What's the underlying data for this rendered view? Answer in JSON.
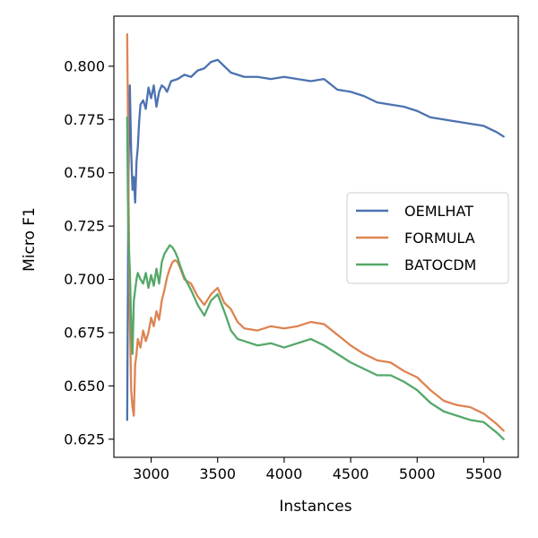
{
  "chart_data": {
    "type": "line",
    "xlabel": "Instances",
    "ylabel": "Micro F1",
    "xlim": [
      2720,
      5760
    ],
    "ylim": [
      0.6165,
      0.8235
    ],
    "x_ticks": [
      3000,
      3500,
      4000,
      4500,
      5000,
      5500
    ],
    "y_ticks": [
      0.625,
      0.65,
      0.675,
      0.7,
      0.725,
      0.75,
      0.775,
      0.8
    ],
    "y_tick_labels": [
      "0.625",
      "0.650",
      "0.675",
      "0.700",
      "0.725",
      "0.750",
      "0.775",
      "0.800"
    ],
    "legend_position": "center-right",
    "grid": false,
    "series": [
      {
        "name": "OEMLHAT",
        "color": "#4c72b0",
        "points": [
          [
            2820,
            0.634
          ],
          [
            2825,
            0.69
          ],
          [
            2830,
            0.75
          ],
          [
            2840,
            0.791
          ],
          [
            2850,
            0.76
          ],
          [
            2860,
            0.742
          ],
          [
            2870,
            0.748
          ],
          [
            2880,
            0.736
          ],
          [
            2890,
            0.755
          ],
          [
            2900,
            0.762
          ],
          [
            2910,
            0.774
          ],
          [
            2920,
            0.782
          ],
          [
            2940,
            0.784
          ],
          [
            2960,
            0.78
          ],
          [
            2980,
            0.79
          ],
          [
            3000,
            0.785
          ],
          [
            3020,
            0.791
          ],
          [
            3040,
            0.781
          ],
          [
            3060,
            0.788
          ],
          [
            3080,
            0.791
          ],
          [
            3100,
            0.79
          ],
          [
            3120,
            0.788
          ],
          [
            3150,
            0.793
          ],
          [
            3200,
            0.794
          ],
          [
            3250,
            0.796
          ],
          [
            3300,
            0.795
          ],
          [
            3350,
            0.798
          ],
          [
            3400,
            0.799
          ],
          [
            3450,
            0.802
          ],
          [
            3500,
            0.803
          ],
          [
            3550,
            0.8
          ],
          [
            3600,
            0.797
          ],
          [
            3700,
            0.795
          ],
          [
            3800,
            0.795
          ],
          [
            3900,
            0.794
          ],
          [
            4000,
            0.795
          ],
          [
            4100,
            0.794
          ],
          [
            4200,
            0.793
          ],
          [
            4300,
            0.794
          ],
          [
            4400,
            0.789
          ],
          [
            4500,
            0.788
          ],
          [
            4600,
            0.786
          ],
          [
            4700,
            0.783
          ],
          [
            4800,
            0.782
          ],
          [
            4900,
            0.781
          ],
          [
            5000,
            0.779
          ],
          [
            5100,
            0.776
          ],
          [
            5200,
            0.775
          ],
          [
            5300,
            0.774
          ],
          [
            5400,
            0.773
          ],
          [
            5500,
            0.772
          ],
          [
            5600,
            0.769
          ],
          [
            5650,
            0.767
          ]
        ]
      },
      {
        "name": "FORMULA",
        "color": "#dd8452",
        "points": [
          [
            2820,
            0.815
          ],
          [
            2825,
            0.78
          ],
          [
            2830,
            0.74
          ],
          [
            2840,
            0.682
          ],
          [
            2850,
            0.648
          ],
          [
            2860,
            0.64
          ],
          [
            2870,
            0.636
          ],
          [
            2880,
            0.66
          ],
          [
            2890,
            0.665
          ],
          [
            2900,
            0.672
          ],
          [
            2920,
            0.668
          ],
          [
            2940,
            0.676
          ],
          [
            2960,
            0.671
          ],
          [
            2980,
            0.675
          ],
          [
            3000,
            0.682
          ],
          [
            3020,
            0.678
          ],
          [
            3040,
            0.685
          ],
          [
            3060,
            0.681
          ],
          [
            3080,
            0.69
          ],
          [
            3100,
            0.695
          ],
          [
            3120,
            0.701
          ],
          [
            3140,
            0.705
          ],
          [
            3160,
            0.708
          ],
          [
            3180,
            0.709
          ],
          [
            3200,
            0.708
          ],
          [
            3220,
            0.705
          ],
          [
            3250,
            0.7
          ],
          [
            3300,
            0.698
          ],
          [
            3350,
            0.692
          ],
          [
            3400,
            0.688
          ],
          [
            3450,
            0.693
          ],
          [
            3500,
            0.696
          ],
          [
            3550,
            0.689
          ],
          [
            3600,
            0.686
          ],
          [
            3650,
            0.68
          ],
          [
            3700,
            0.677
          ],
          [
            3800,
            0.676
          ],
          [
            3900,
            0.678
          ],
          [
            4000,
            0.677
          ],
          [
            4100,
            0.678
          ],
          [
            4200,
            0.68
          ],
          [
            4300,
            0.679
          ],
          [
            4400,
            0.674
          ],
          [
            4500,
            0.669
          ],
          [
            4600,
            0.665
          ],
          [
            4700,
            0.662
          ],
          [
            4800,
            0.661
          ],
          [
            4900,
            0.657
          ],
          [
            5000,
            0.654
          ],
          [
            5100,
            0.648
          ],
          [
            5200,
            0.643
          ],
          [
            5300,
            0.641
          ],
          [
            5400,
            0.64
          ],
          [
            5500,
            0.637
          ],
          [
            5600,
            0.632
          ],
          [
            5650,
            0.629
          ]
        ]
      },
      {
        "name": "BATOCDM",
        "color": "#55a868",
        "points": [
          [
            2820,
            0.776
          ],
          [
            2825,
            0.74
          ],
          [
            2830,
            0.718
          ],
          [
            2840,
            0.705
          ],
          [
            2850,
            0.68
          ],
          [
            2860,
            0.665
          ],
          [
            2870,
            0.69
          ],
          [
            2880,
            0.695
          ],
          [
            2890,
            0.7
          ],
          [
            2900,
            0.703
          ],
          [
            2920,
            0.7
          ],
          [
            2940,
            0.698
          ],
          [
            2960,
            0.703
          ],
          [
            2980,
            0.696
          ],
          [
            3000,
            0.702
          ],
          [
            3020,
            0.697
          ],
          [
            3040,
            0.705
          ],
          [
            3060,
            0.698
          ],
          [
            3080,
            0.708
          ],
          [
            3100,
            0.712
          ],
          [
            3120,
            0.714
          ],
          [
            3140,
            0.716
          ],
          [
            3160,
            0.715
          ],
          [
            3180,
            0.713
          ],
          [
            3200,
            0.71
          ],
          [
            3220,
            0.706
          ],
          [
            3250,
            0.701
          ],
          [
            3300,
            0.695
          ],
          [
            3350,
            0.688
          ],
          [
            3400,
            0.683
          ],
          [
            3450,
            0.69
          ],
          [
            3500,
            0.693
          ],
          [
            3550,
            0.685
          ],
          [
            3600,
            0.676
          ],
          [
            3650,
            0.672
          ],
          [
            3700,
            0.671
          ],
          [
            3800,
            0.669
          ],
          [
            3900,
            0.67
          ],
          [
            4000,
            0.668
          ],
          [
            4100,
            0.67
          ],
          [
            4200,
            0.672
          ],
          [
            4300,
            0.669
          ],
          [
            4400,
            0.665
          ],
          [
            4500,
            0.661
          ],
          [
            4600,
            0.658
          ],
          [
            4700,
            0.655
          ],
          [
            4800,
            0.655
          ],
          [
            4900,
            0.652
          ],
          [
            5000,
            0.648
          ],
          [
            5100,
            0.642
          ],
          [
            5200,
            0.638
          ],
          [
            5300,
            0.636
          ],
          [
            5400,
            0.634
          ],
          [
            5500,
            0.633
          ],
          [
            5600,
            0.628
          ],
          [
            5650,
            0.625
          ]
        ]
      }
    ]
  }
}
